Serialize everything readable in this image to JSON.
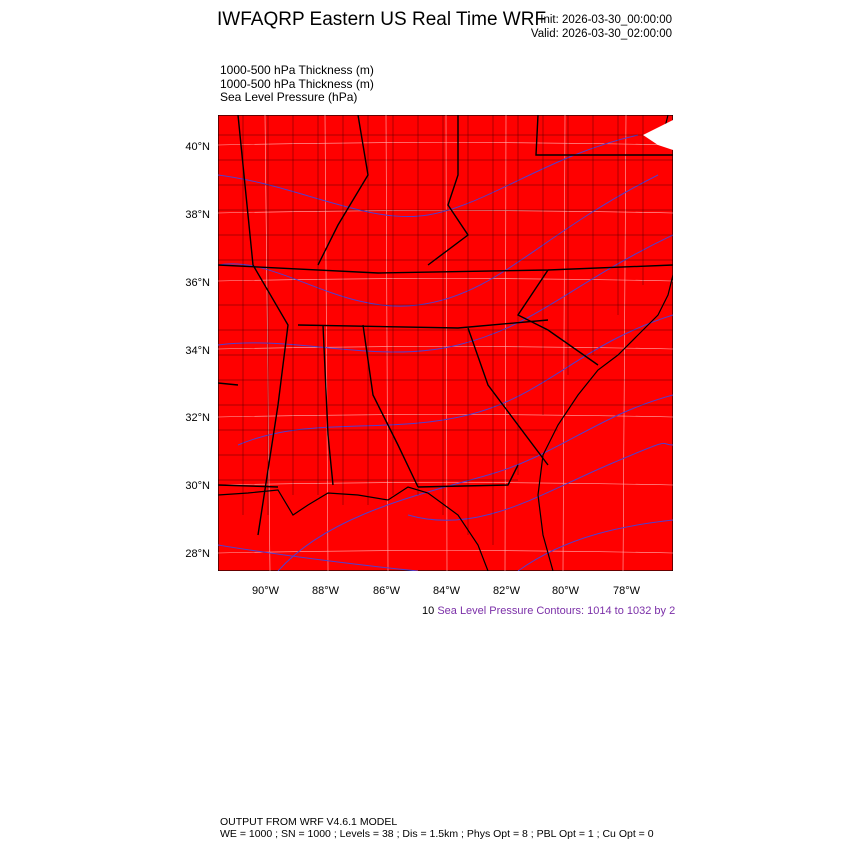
{
  "header": {
    "title": "IWFAQRP Eastern US Real Time WRF",
    "init": "Init: 2026-03-30_00:00:00",
    "valid": "Valid: 2026-03-30_02:00:00"
  },
  "fields": [
    "1000-500 hPa Thickness   (m)",
    "1000-500 hPa Thickness   (m)",
    "Sea Level Pressure   (hPa)"
  ],
  "map": {
    "fill_color": "#ff0000",
    "contour_color": "#4f3fd0",
    "border_color": "#000000",
    "lat_labels": [
      "40°N",
      "38°N",
      "36°N",
      "34°N",
      "32°N",
      "30°N",
      "28°N"
    ],
    "lon_labels": [
      "90°W",
      "88°W",
      "86°W",
      "84°W",
      "82°W",
      "80°W",
      "78°W"
    ]
  },
  "contour_note": {
    "prefix": "10",
    "text": "Sea Level Pressure Contours: 1014 to 1032 by 2"
  },
  "footer": {
    "line1": "OUTPUT FROM WRF V4.6.1 MODEL",
    "line2": "WE = 1000 ; SN = 1000 ; Levels = 38 ; Dis = 1.5km ; Phys Opt = 8 ; PBL Opt = 1 ; Cu Opt = 0"
  }
}
